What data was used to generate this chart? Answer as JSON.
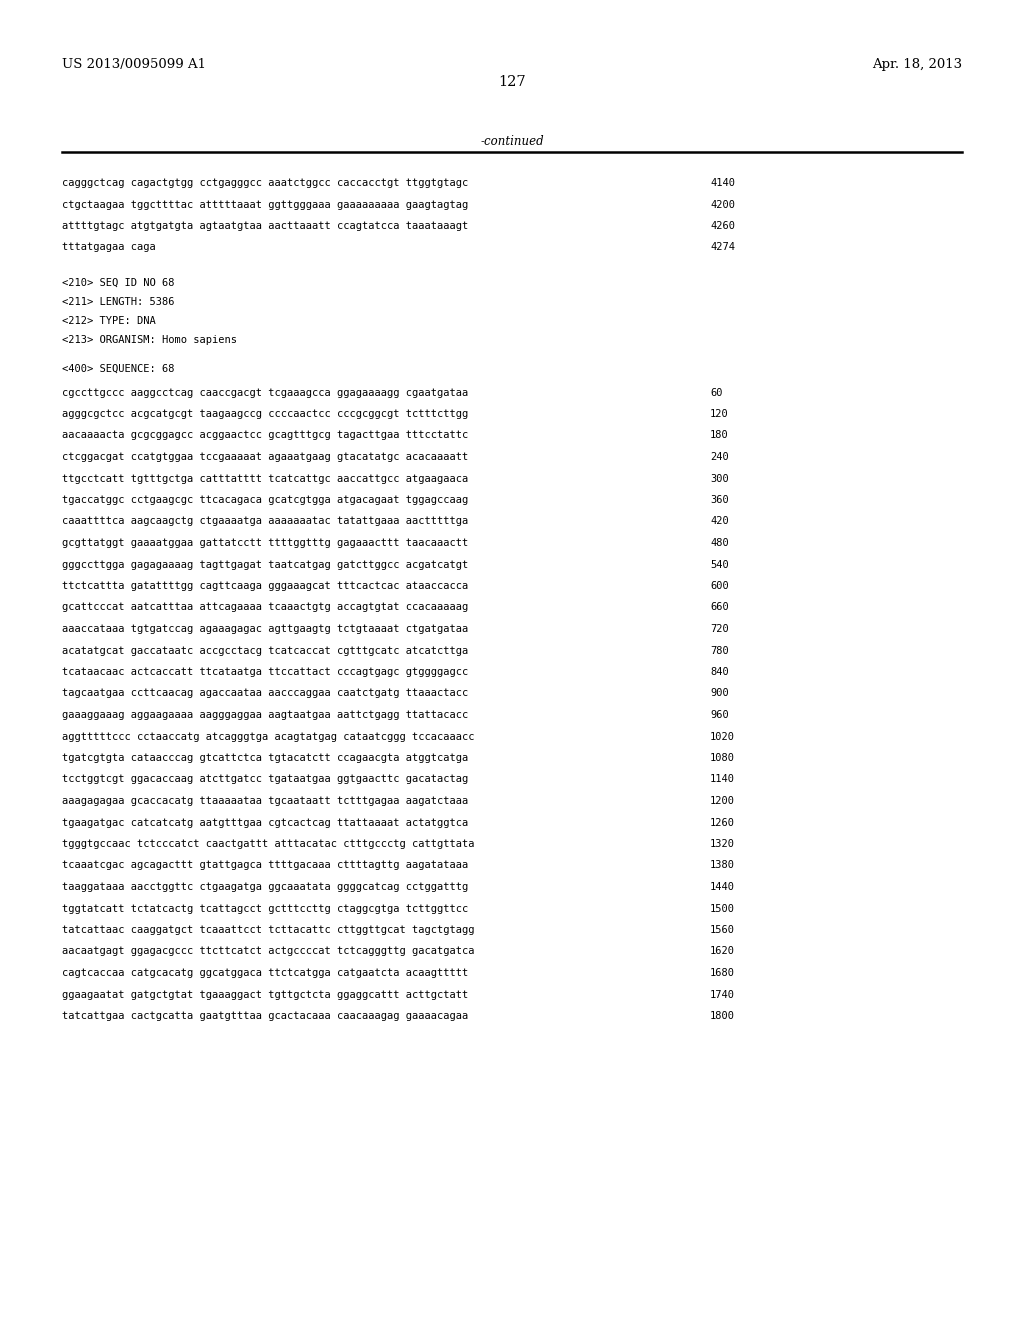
{
  "header_left": "US 2013/0095099 A1",
  "header_right": "Apr. 18, 2013",
  "page_number": "127",
  "continued_text": "-continued",
  "background_color": "#ffffff",
  "text_color": "#000000",
  "mono_font_size": 7.5,
  "header_font_size": 9.5,
  "page_num_font_size": 10.5,
  "continued_font_size": 8.5,
  "sequence_lines_top": [
    [
      "cagggctcag cagactgtgg cctgagggcc aaatctggcc caccacctgt ttggtgtagc",
      "4140"
    ],
    [
      "ctgctaagaa tggcttttac atttttaaat ggttgggaaa gaaaaaaaaa gaagtagtag",
      "4200"
    ],
    [
      "attttgtagc atgtgatgta agtaatgtaa aacttaaatt ccagtatcca taaataaagt",
      "4260"
    ],
    [
      "tttatgagaa caga",
      "4274"
    ]
  ],
  "metadata_lines": [
    "<210> SEQ ID NO 68",
    "<211> LENGTH: 5386",
    "<212> TYPE: DNA",
    "<213> ORGANISM: Homo sapiens"
  ],
  "sequence_label": "<400> SEQUENCE: 68",
  "sequence_lines": [
    [
      "cgccttgccc aaggcctcag caaccgacgt tcgaaagcca ggagaaaagg cgaatgataa",
      "60"
    ],
    [
      "agggcgctcc acgcatgcgt taagaagccg ccccaactcc cccgcggcgt tctttcttgg",
      "120"
    ],
    [
      "aacaaaacta gcgcggagcc acggaactcc gcagtttgcg tagacttgaa tttcctattc",
      "180"
    ],
    [
      "ctcggacgat ccatgtggaa tccgaaaaat agaaatgaag gtacatatgc acacaaaatt",
      "240"
    ],
    [
      "ttgcctcatt tgtttgctga catttatttt tcatcattgc aaccattgcc atgaagaaca",
      "300"
    ],
    [
      "tgaccatggc cctgaagcgc ttcacagaca gcatcgtgga atgacagaat tggagccaag",
      "360"
    ],
    [
      "caaattttca aagcaagctg ctgaaaatga aaaaaaatac tatattgaaa aactttttga",
      "420"
    ],
    [
      "gcgttatggt gaaaatggaa gattatcctt ttttggtttg gagaaacttt taacaaactt",
      "480"
    ],
    [
      "gggccttgga gagagaaaag tagttgagat taatcatgag gatcttggcc acgatcatgt",
      "540"
    ],
    [
      "ttctcattta gatattttgg cagttcaaga gggaaagcat tttcactcac ataaccacca",
      "600"
    ],
    [
      "gcattcccat aatcatttaa attcagaaaa tcaaactgtg accagtgtat ccacaaaaag",
      "660"
    ],
    [
      "aaaccataaa tgtgatccag agaaagagac agttgaagtg tctgtaaaat ctgatgataa",
      "720"
    ],
    [
      "acatatgcat gaccataatc accgcctacg tcatcaccat cgtttgcatc atcatcttga",
      "780"
    ],
    [
      "tcataacaac actcaccatt ttcataatga ttccattact cccagtgagc gtggggagcc",
      "840"
    ],
    [
      "tagcaatgaa ccttcaacag agaccaataa aacccaggaa caatctgatg ttaaactacc",
      "900"
    ],
    [
      "gaaaggaaag aggaagaaaa aagggaggaa aagtaatgaa aattctgagg ttattacacc",
      "960"
    ],
    [
      "aggtttttccc cctaaccatg atcagggtga acagtatgag cataatcggg tccacaaacc",
      "1020"
    ],
    [
      "tgatcgtgta cataacccag gtcattctca tgtacatctt ccagaacgta atggtcatga",
      "1080"
    ],
    [
      "tcctggtcgt ggacaccaag atcttgatcc tgataatgaa ggtgaacttc gacatactag",
      "1140"
    ],
    [
      "aaagagagaa gcaccacatg ttaaaaataa tgcaataatt tctttgagaa aagatctaaa",
      "1200"
    ],
    [
      "tgaagatgac catcatcatg aatgtttgaa cgtcactcag ttattaaaat actatggtca",
      "1260"
    ],
    [
      "tgggtgccaac tctcccatct caactgattt atttacatac ctttgccctg cattgttata",
      "1320"
    ],
    [
      "tcaaatcgac agcagacttt gtattgagca ttttgacaaa cttttagttg aagatataaa",
      "1380"
    ],
    [
      "taaggataaa aacctggttc ctgaagatga ggcaaatata ggggcatcag cctggatttg",
      "1440"
    ],
    [
      "tggtatcatt tctatcactg tcattagcct gctttccttg ctaggcgtga tcttggttcc",
      "1500"
    ],
    [
      "tatcattaac caaggatgct tcaaattcct tcttacattc cttggttgcat tagctgtagg",
      "1560"
    ],
    [
      "aacaatgagt ggagacgccc ttcttcatct actgccccat tctcagggttg gacatgatca",
      "1620"
    ],
    [
      "cagtcaccaa catgcacatg ggcatggaca ttctcatgga catgaatcta acaagttttt",
      "1680"
    ],
    [
      "ggaagaatat gatgctgtat tgaaaggact tgttgctcta ggaggcattt acttgctatt",
      "1740"
    ],
    [
      "tatcattgaa cactgcatta gaatgtttaa gcactacaaa caacaaagag gaaaacagaa",
      "1800"
    ]
  ]
}
